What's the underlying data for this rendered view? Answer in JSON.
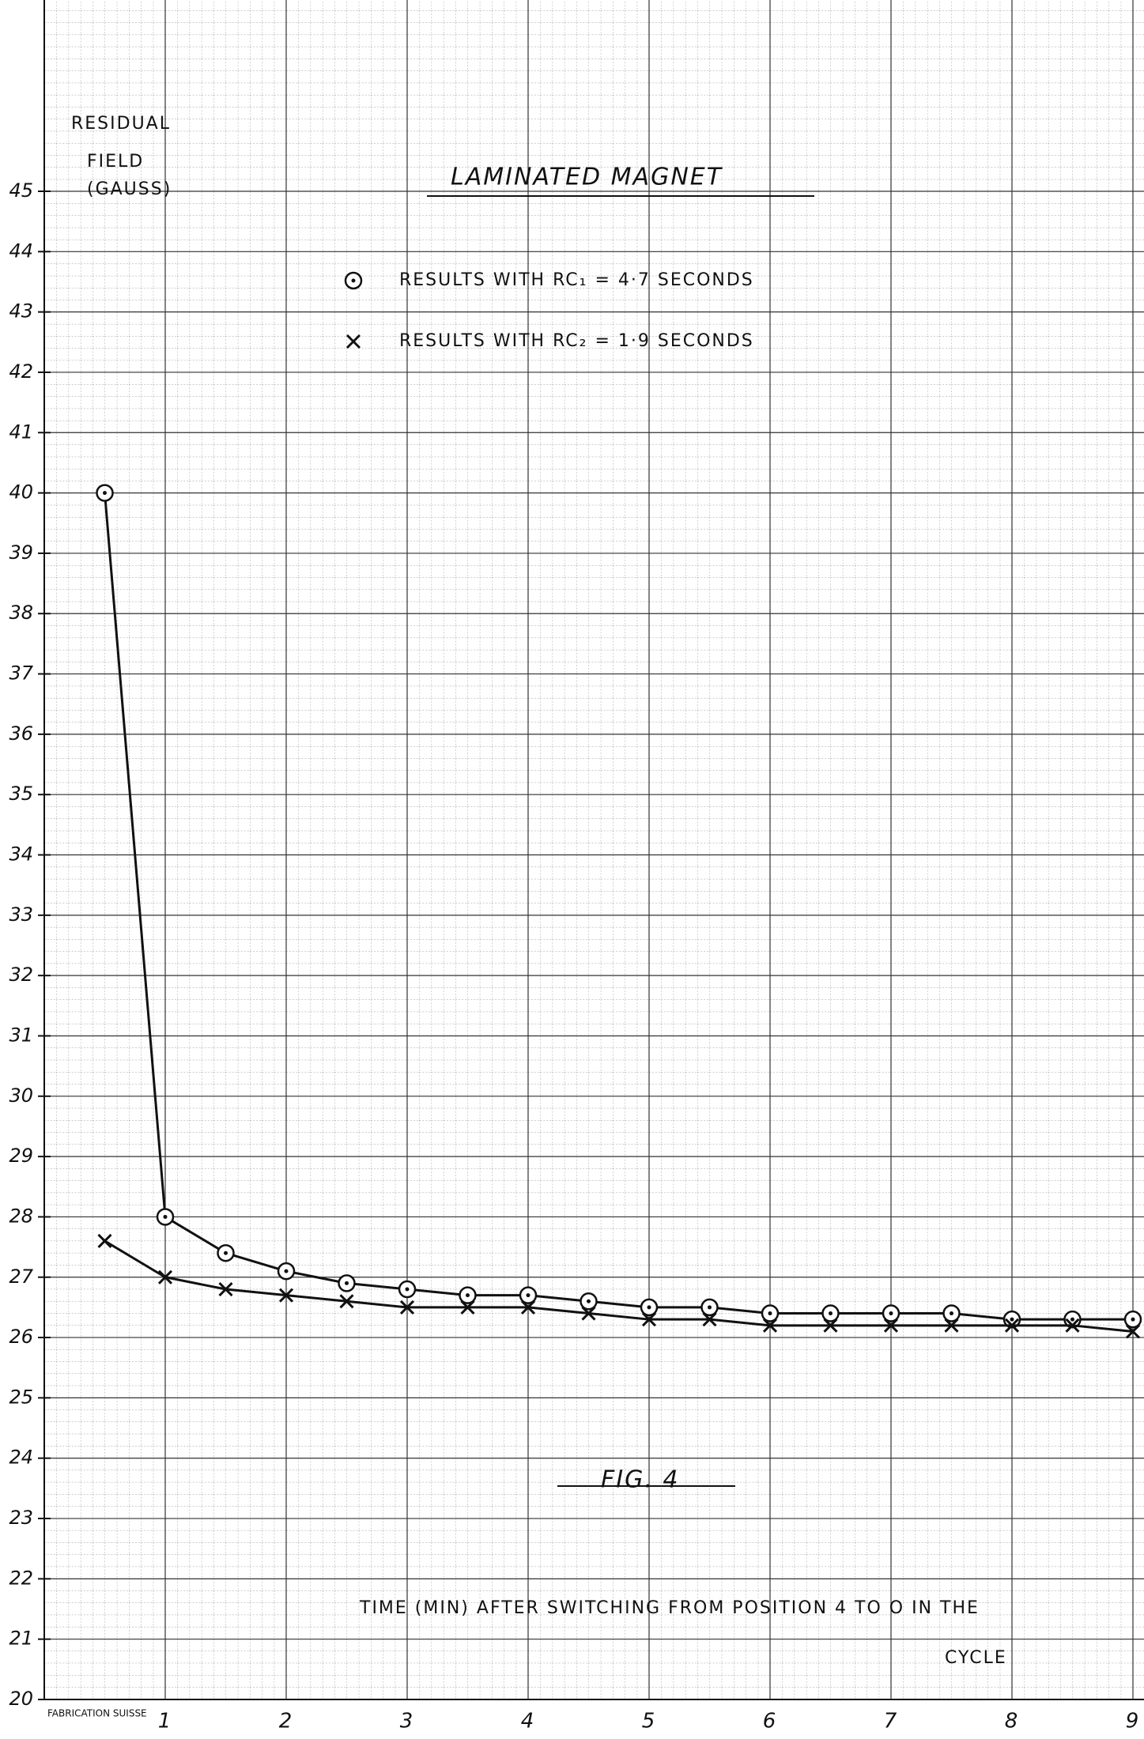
{
  "chart_data": {
    "type": "line",
    "title": "LAMINATED MAGNET",
    "subtitle": "FIG. 4",
    "y_label_lines": [
      "RESIDUAL",
      "FIELD",
      "(GAUSS)"
    ],
    "x_label_lines": [
      "TIME (MIN) AFTER SWITCHING FROM POSITION 4 TO O IN THE",
      "CYCLE"
    ],
    "footer": "FABRICATION SUISSE",
    "x": [
      0.5,
      1,
      1.5,
      2,
      2.5,
      3,
      3.5,
      4,
      4.5,
      5,
      5.5,
      6,
      6.5,
      7,
      7.5,
      8,
      8.5,
      9
    ],
    "series": [
      {
        "name": "RESULTS WITH RC₁ = 4·7 SECONDS",
        "marker": "circle",
        "color": "#111111",
        "values": [
          40,
          28,
          27.4,
          27.1,
          26.9,
          26.8,
          26.7,
          26.7,
          26.6,
          26.5,
          26.5,
          26.4,
          26.4,
          26.4,
          26.4,
          26.3,
          26.3,
          26.3
        ]
      },
      {
        "name": "RESULTS WITH RC₂ = 1·9 SECONDS",
        "marker": "cross",
        "color": "#111111",
        "values": [
          27.6,
          27,
          26.8,
          26.7,
          26.6,
          26.5,
          26.5,
          26.5,
          26.4,
          26.3,
          26.3,
          26.2,
          26.2,
          26.2,
          26.2,
          26.2,
          26.2,
          26.1
        ]
      }
    ],
    "xlim": [
      0,
      9
    ],
    "xticks": [
      1,
      2,
      3,
      4,
      5,
      6,
      7,
      8,
      9
    ],
    "ylim": [
      20,
      45
    ],
    "yticks": [
      20,
      21,
      22,
      23,
      24,
      25,
      26,
      27,
      28,
      29,
      30,
      31,
      32,
      33,
      34,
      35,
      36,
      37,
      38,
      39,
      40,
      41,
      42,
      43,
      44,
      45
    ],
    "grid": true
  }
}
